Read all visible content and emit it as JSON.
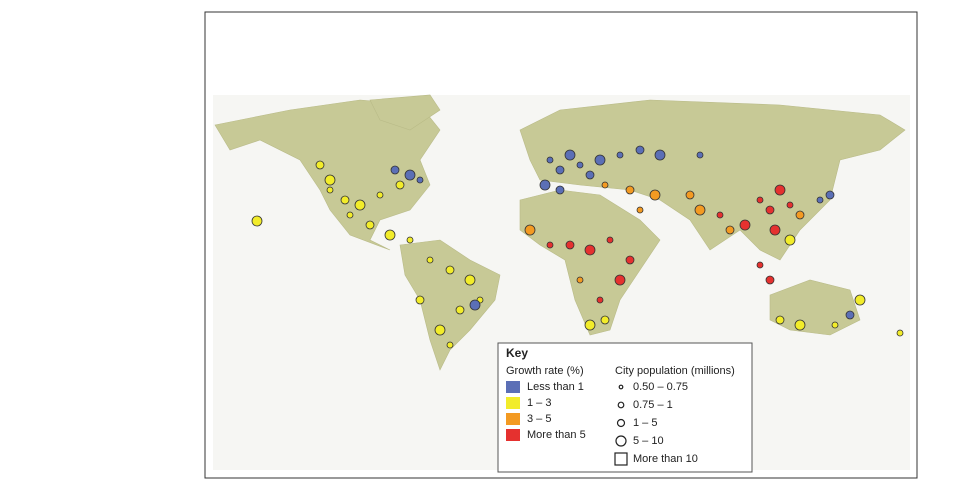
{
  "key": {
    "title": "Key",
    "growth_rate": {
      "title": "Growth rate (%)",
      "items": [
        {
          "label": "Less than 1",
          "color": "#5b6fb6"
        },
        {
          "label": "1 – 3",
          "color": "#f2ec2a"
        },
        {
          "label": "3 – 5",
          "color": "#f39a22"
        },
        {
          "label": "More than 5",
          "color": "#e5312f"
        }
      ]
    },
    "population": {
      "title": "City population (millions)",
      "items": [
        {
          "label": "0.50 – 0.75",
          "shape": "circle"
        },
        {
          "label": "0.75 – 1",
          "shape": "circle"
        },
        {
          "label": "1 – 5",
          "shape": "circle"
        },
        {
          "label": "5 – 10",
          "shape": "circle"
        },
        {
          "label": "More than 10",
          "shape": "square"
        }
      ]
    }
  }
}
